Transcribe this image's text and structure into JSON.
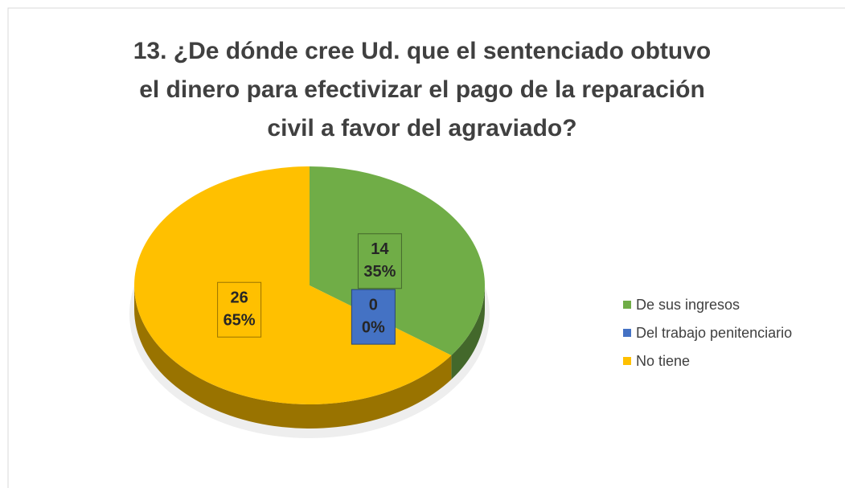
{
  "chart_data": {
    "type": "pie",
    "title": "13. ¿De dónde cree Ud. que el sentenciado obtuvo el dinero para efectivizar el pago de la reparación civil a favor del agraviado?",
    "categories": [
      "De sus ingresos",
      "Del trabajo penitenciario",
      "No tiene"
    ],
    "values": [
      35,
      0,
      65
    ],
    "value_labels": [
      "35%",
      "0%",
      "65%"
    ],
    "counts": [
      14,
      0,
      26
    ],
    "colors": [
      "#70ad47",
      "#4472c4",
      "#ffc000"
    ],
    "legend": "right"
  }
}
